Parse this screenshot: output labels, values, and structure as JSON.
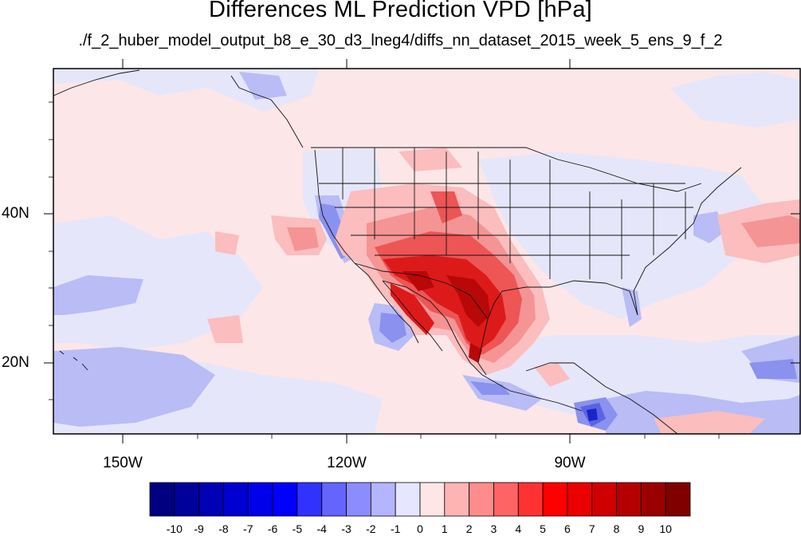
{
  "header": {
    "title": "Differences ML Prediction VPD [hPa]",
    "subtitle": "./f_2_huber_model_output_b8_e_30_d3_lneg4/diffs_nn_dataset_2015_week_5_ens_9_f_2"
  },
  "axes": {
    "lat_labels": [
      "40N",
      "20N"
    ],
    "lon_labels": [
      "150W",
      "120W",
      "90W"
    ]
  },
  "colorbar": {
    "labels": [
      "-10",
      "-9",
      "-8",
      "-7",
      "-6",
      "-5",
      "-4",
      "-3",
      "-2",
      "-1",
      "0",
      "1",
      "2",
      "3",
      "4",
      "5",
      "6",
      "7",
      "8",
      "9",
      "10"
    ],
    "colors": [
      "#000080",
      "#00009b",
      "#0000b5",
      "#0000d0",
      "#0000eb",
      "#0000ff",
      "#3232ff",
      "#6464ff",
      "#8c8cff",
      "#b4b4ff",
      "#e6e6ff",
      "#ffe6e6",
      "#ffb4b4",
      "#ff8c8c",
      "#ff6464",
      "#ff3232",
      "#ff0000",
      "#eb0000",
      "#d00000",
      "#b50000",
      "#9b0000",
      "#800000"
    ]
  },
  "palette": {
    "neutral_pos": "#fde6e8",
    "neutral_neg": "#e6e6fa",
    "light_pos": "#fbbdbe",
    "mid_pos": "#f59494",
    "strong_pos": "#ee5555",
    "vstrong_pos": "#dd1a1a",
    "extreme_pos": "#b80808",
    "light_neg": "#b9bcf5",
    "mid_neg": "#8a91ee",
    "strong_neg": "#5a64e3",
    "vstrong_neg": "#1a24c8",
    "coast": "#111111"
  }
}
